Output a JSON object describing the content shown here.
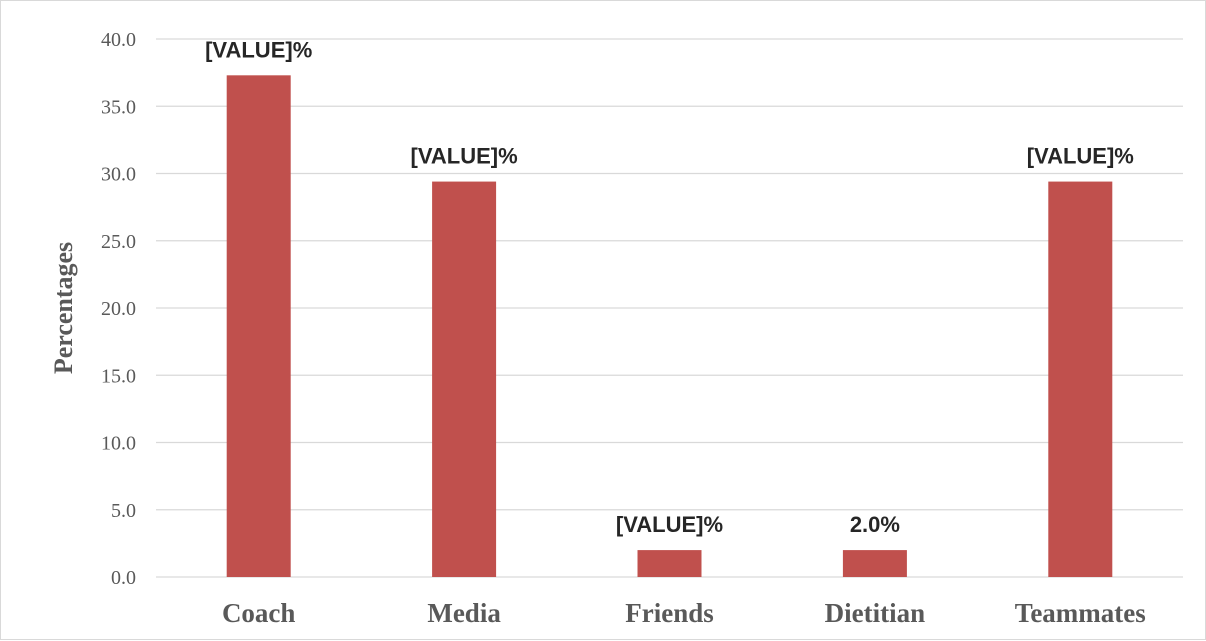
{
  "chart_data": {
    "type": "bar",
    "categories": [
      "Coach",
      "Media",
      "Friends",
      "Dietitian",
      "Teammates"
    ],
    "series": [
      {
        "values": [
          37.3,
          29.4,
          2.0,
          2.0,
          29.4
        ],
        "data_labels": [
          "[VALUE]%",
          "[VALUE]%",
          "[VALUE]%",
          "2.0%",
          "[VALUE]%"
        ],
        "color": "#c0504d"
      }
    ],
    "title": "",
    "xlabel": "",
    "ylabel": "Percentages",
    "ylim": [
      0,
      40
    ],
    "yticks": [
      "0.0",
      "5.0",
      "10.0",
      "15.0",
      "20.0",
      "25.0",
      "30.0",
      "35.0",
      "40.0"
    ],
    "grid": true,
    "legend": "none"
  }
}
